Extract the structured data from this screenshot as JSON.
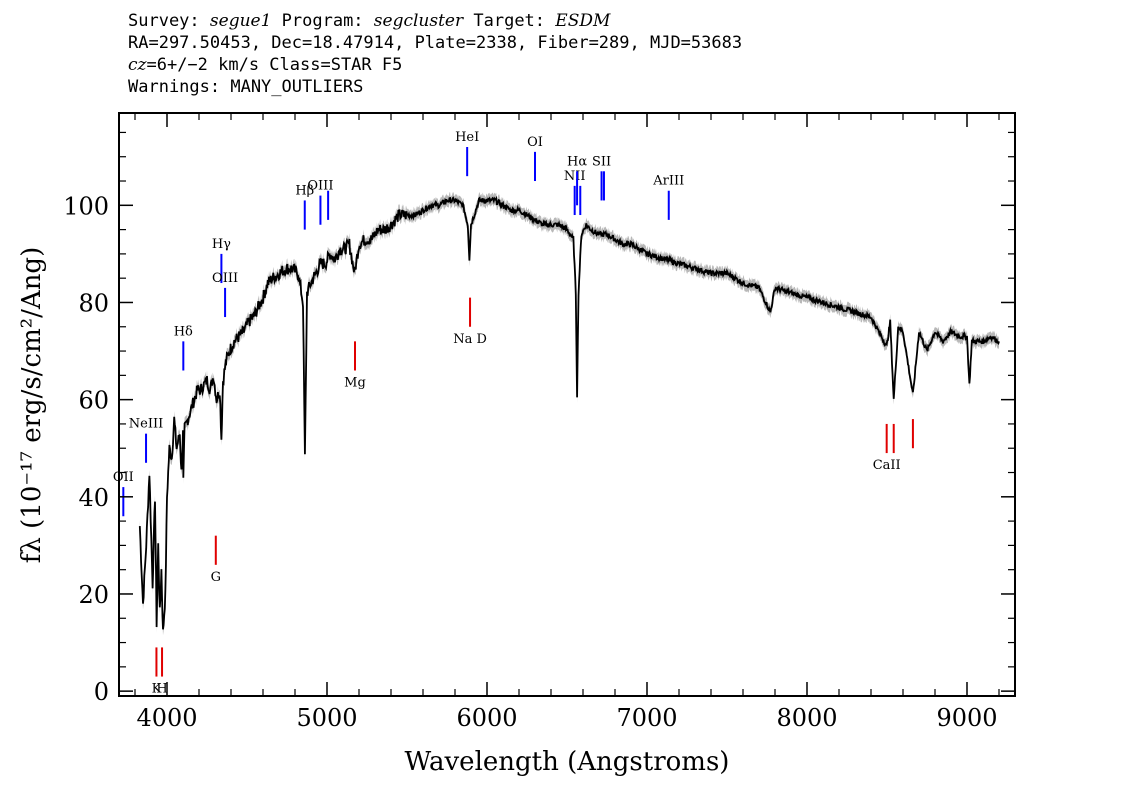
{
  "header": {
    "line1": {
      "survey_label": "Survey:",
      "survey": "segue1",
      "program_label": "Program:",
      "program": "segcluster",
      "target_label": "Target:",
      "target": "ESDM"
    },
    "line2": "RA=297.50453, Dec=18.47914, Plate=2338, Fiber=289, MJD=53683",
    "line3": {
      "cz_label": "cz",
      "cz_value": "=6+/−2 km/s Class=STAR F5"
    },
    "line4": "Warnings: MANY_OUTLIERS"
  },
  "chart_data": {
    "type": "line",
    "title": "",
    "xlabel": "Wavelength (Angstroms)",
    "ylabel": "fλ (10⁻¹⁷ erg/s/cm²/Ang)",
    "xlim": [
      3700,
      9300
    ],
    "ylim": [
      -1,
      119
    ],
    "x_ticks": [
      "4000",
      "5000",
      "6000",
      "7000",
      "8000",
      "9000"
    ],
    "y_ticks": [
      "0",
      "20",
      "40",
      "60",
      "80",
      "100"
    ],
    "grid": false,
    "colors": {
      "spectrum": "#000000",
      "error_band": "#b8b8b8",
      "emission_lines": "#0000ff",
      "absorption_lines": "#e00000"
    },
    "series": [
      {
        "values": [
          [
            3830,
            34
          ],
          [
            3850,
            18
          ],
          [
            3870,
            30
          ],
          [
            3890,
            45
          ],
          [
            3910,
            22
          ],
          [
            3925,
            40
          ],
          [
            3935,
            14
          ],
          [
            3945,
            30
          ],
          [
            3955,
            16
          ],
          [
            3965,
            25
          ],
          [
            3975,
            12
          ],
          [
            3990,
            20
          ],
          [
            4000,
            40
          ],
          [
            4015,
            50
          ],
          [
            4030,
            48
          ],
          [
            4045,
            56
          ],
          [
            4060,
            50
          ],
          [
            4080,
            53
          ],
          [
            4090,
            45
          ],
          [
            4100,
            53
          ],
          [
            4102,
            43
          ],
          [
            4110,
            54
          ],
          [
            4130,
            56
          ],
          [
            4150,
            58
          ],
          [
            4170,
            60
          ],
          [
            4190,
            62
          ],
          [
            4210,
            62
          ],
          [
            4230,
            63
          ],
          [
            4250,
            64
          ],
          [
            4270,
            62
          ],
          [
            4290,
            65
          ],
          [
            4310,
            60
          ],
          [
            4330,
            62
          ],
          [
            4340,
            52
          ],
          [
            4350,
            64
          ],
          [
            4370,
            68
          ],
          [
            4390,
            70
          ],
          [
            4420,
            72
          ],
          [
            4450,
            73
          ],
          [
            4480,
            74
          ],
          [
            4510,
            76
          ],
          [
            4540,
            77
          ],
          [
            4570,
            79
          ],
          [
            4600,
            81
          ],
          [
            4630,
            84
          ],
          [
            4660,
            85
          ],
          [
            4700,
            86
          ],
          [
            4740,
            87
          ],
          [
            4780,
            87
          ],
          [
            4820,
            86
          ],
          [
            4850,
            80
          ],
          [
            4862,
            48
          ],
          [
            4875,
            82
          ],
          [
            4900,
            84
          ],
          [
            4930,
            86
          ],
          [
            4960,
            88
          ],
          [
            4990,
            88
          ],
          [
            5020,
            90
          ],
          [
            5050,
            89
          ],
          [
            5080,
            91
          ],
          [
            5110,
            91
          ],
          [
            5140,
            92
          ],
          [
            5172,
            86
          ],
          [
            5200,
            92
          ],
          [
            5240,
            93
          ],
          [
            5280,
            93
          ],
          [
            5320,
            95
          ],
          [
            5360,
            95
          ],
          [
            5400,
            96
          ],
          [
            5450,
            98
          ],
          [
            5500,
            98
          ],
          [
            5550,
            98
          ],
          [
            5600,
            99
          ],
          [
            5650,
            100
          ],
          [
            5700,
            100
          ],
          [
            5750,
            101
          ],
          [
            5800,
            101
          ],
          [
            5850,
            100
          ],
          [
            5880,
            96
          ],
          [
            5890,
            89
          ],
          [
            5900,
            96
          ],
          [
            5950,
            101
          ],
          [
            6000,
            101
          ],
          [
            6050,
            101
          ],
          [
            6100,
            100
          ],
          [
            6150,
            99
          ],
          [
            6200,
            99
          ],
          [
            6250,
            98
          ],
          [
            6300,
            97
          ],
          [
            6350,
            96
          ],
          [
            6400,
            96
          ],
          [
            6450,
            96
          ],
          [
            6500,
            95
          ],
          [
            6540,
            93
          ],
          [
            6555,
            82
          ],
          [
            6563,
            61
          ],
          [
            6572,
            82
          ],
          [
            6590,
            94
          ],
          [
            6620,
            96
          ],
          [
            6650,
            95
          ],
          [
            6700,
            94
          ],
          [
            6750,
            94
          ],
          [
            6800,
            93
          ],
          [
            6850,
            92
          ],
          [
            6900,
            92
          ],
          [
            6950,
            91
          ],
          [
            7000,
            90
          ],
          [
            7100,
            89
          ],
          [
            7200,
            88
          ],
          [
            7300,
            87
          ],
          [
            7400,
            86
          ],
          [
            7500,
            86
          ],
          [
            7600,
            84
          ],
          [
            7700,
            83
          ],
          [
            7771,
            78
          ],
          [
            7800,
            83
          ],
          [
            7900,
            82
          ],
          [
            8000,
            81
          ],
          [
            8100,
            80
          ],
          [
            8200,
            79
          ],
          [
            8300,
            78
          ],
          [
            8400,
            77
          ],
          [
            8498,
            71
          ],
          [
            8520,
            76
          ],
          [
            8542,
            60
          ],
          [
            8570,
            75
          ],
          [
            8600,
            74
          ],
          [
            8662,
            61
          ],
          [
            8700,
            74
          ],
          [
            8750,
            70
          ],
          [
            8800,
            74
          ],
          [
            8850,
            72
          ],
          [
            8900,
            74
          ],
          [
            8950,
            73
          ],
          [
            9000,
            73
          ],
          [
            9015,
            63
          ],
          [
            9030,
            72
          ],
          [
            9100,
            72
          ],
          [
            9150,
            73
          ],
          [
            9200,
            72
          ]
        ]
      }
    ],
    "line_markers": [
      {
        "label": "OII",
        "type": "emission",
        "wavelength": 3727,
        "y_low": 36,
        "y_high": 42
      },
      {
        "label": "NeIII",
        "type": "emission",
        "wavelength": 3869,
        "y_low": 47,
        "y_high": 53
      },
      {
        "label": "Hδ",
        "type": "emission",
        "wavelength": 4102,
        "y_low": 66,
        "y_high": 72
      },
      {
        "label": "Hγ",
        "type": "emission",
        "wavelength": 4340,
        "y_low": 84,
        "y_high": 90
      },
      {
        "label": "OIII",
        "type": "emission",
        "wavelength": 4363,
        "y_low": 77,
        "y_high": 83
      },
      {
        "label": "Hβ",
        "type": "emission",
        "wavelength": 4861,
        "y_low": 95,
        "y_high": 101
      },
      {
        "label": "OIII",
        "type": "emission",
        "wavelength": 4959,
        "y_low": 96,
        "y_high": 102
      },
      {
        "label": "",
        "type": "emission",
        "wavelength": 5007,
        "y_low": 97,
        "y_high": 103
      },
      {
        "label": "HeI",
        "type": "emission",
        "wavelength": 5876,
        "y_low": 106,
        "y_high": 112
      },
      {
        "label": "OI",
        "type": "emission",
        "wavelength": 6300,
        "y_low": 105,
        "y_high": 111
      },
      {
        "label": "NII",
        "type": "emission",
        "wavelength": 6548,
        "y_low": 98,
        "y_high": 104
      },
      {
        "label": "Hα",
        "type": "emission",
        "wavelength": 6563,
        "y_low": 100,
        "y_high": 107
      },
      {
        "label": "",
        "type": "emission",
        "wavelength": 6583,
        "y_low": 98,
        "y_high": 104
      },
      {
        "label": "SII",
        "type": "emission",
        "wavelength": 6716,
        "y_low": 101,
        "y_high": 107
      },
      {
        "label": "",
        "type": "emission",
        "wavelength": 6731,
        "y_low": 101,
        "y_high": 107
      },
      {
        "label": "ArIII",
        "type": "emission",
        "wavelength": 7136,
        "y_low": 97,
        "y_high": 103
      },
      {
        "label": "K",
        "type": "absorption",
        "wavelength": 3934,
        "y_low": 3,
        "y_high": 9
      },
      {
        "label": "H",
        "type": "absorption",
        "wavelength": 3969,
        "y_low": 3,
        "y_high": 9
      },
      {
        "label": "G",
        "type": "absorption",
        "wavelength": 4305,
        "y_low": 26,
        "y_high": 32
      },
      {
        "label": "Mg",
        "type": "absorption",
        "wavelength": 5175,
        "y_low": 66,
        "y_high": 72
      },
      {
        "label": "Na D",
        "type": "absorption",
        "wavelength": 5894,
        "y_low": 75,
        "y_high": 81
      },
      {
        "label": "CaII",
        "type": "absorption",
        "wavelength": 8498,
        "y_low": 49,
        "y_high": 55
      },
      {
        "label": "",
        "type": "absorption",
        "wavelength": 8542,
        "y_low": 49,
        "y_high": 55
      },
      {
        "label": "",
        "type": "absorption",
        "wavelength": 8662,
        "y_low": 50,
        "y_high": 56
      }
    ]
  }
}
